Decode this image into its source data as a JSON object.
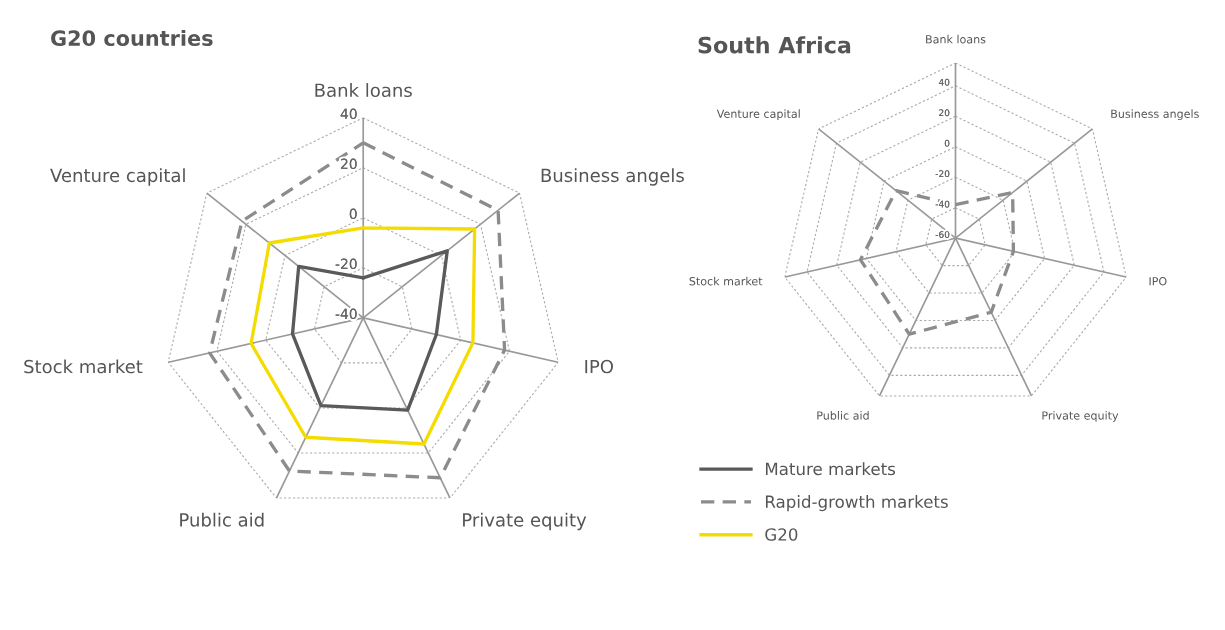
{
  "chart_data": [
    {
      "type": "radar",
      "title": "G20 countries",
      "categories": [
        "Bank loans",
        "Business angels",
        "IPO",
        "Private equity",
        "Public aid",
        "Stock market",
        "Venture capital"
      ],
      "ylim": [
        -40,
        40
      ],
      "yticks": [
        -40,
        -20,
        0,
        20,
        40
      ],
      "legend": "right",
      "series": [
        {
          "name": "Mature markets",
          "color": "#5a5a5a",
          "line_style": "solid",
          "values": [
            -24,
            3,
            -10,
            1,
            -1,
            -11,
            -7
          ]
        },
        {
          "name": "Rapid-growth markets",
          "color": "#8c8c8c",
          "line_style": "dashed",
          "values": [
            30,
            29,
            18,
            31,
            28,
            23,
            22
          ]
        },
        {
          "name": "G20",
          "color": "#f5dc00",
          "line_style": "solid",
          "values": [
            -4,
            17,
            5,
            16,
            13,
            6,
            8
          ]
        }
      ]
    },
    {
      "type": "radar",
      "title": "South Africa",
      "categories": [
        "Bank loans",
        "Business angels",
        "IPO",
        "Private equity",
        "Public aid",
        "Stock market",
        "Venture capital"
      ],
      "ylim": [
        -60,
        55
      ],
      "yticks": [
        -60,
        -40,
        -20,
        0,
        20,
        40
      ],
      "series": [
        {
          "name": "Rapid-growth markets",
          "color": "#8c8c8c",
          "line_style": "dashed",
          "values": [
            -38,
            -12,
            -21,
            -6,
            10,
            4,
            -10
          ]
        }
      ]
    }
  ]
}
